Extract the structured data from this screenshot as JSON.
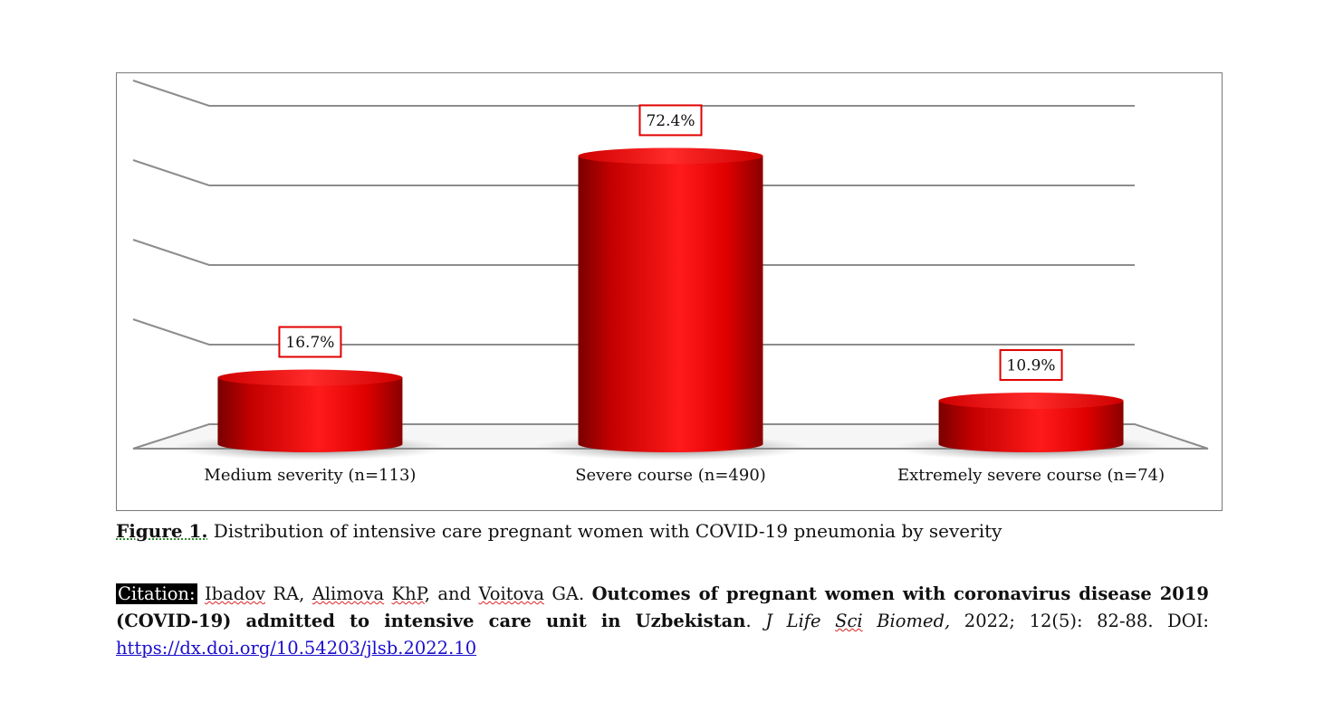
{
  "chart_data": {
    "type": "bar",
    "style": "3d-cylinder",
    "categories": [
      "Medium severity (n=113)",
      "Severe course (n=490)",
      "Extremely severe course (n=74)"
    ],
    "values": [
      16.7,
      72.4,
      10.9
    ],
    "data_labels": [
      "16.7%",
      "72.4%",
      "10.9%"
    ],
    "ylim": [
      0,
      80
    ],
    "grid": true,
    "legend": "none",
    "bar_color": "#e00000"
  },
  "caption": {
    "label": "Figure 1.",
    "text": " Distribution of intensive care pregnant women with COVID-19 pneumonia by severity"
  },
  "citation": {
    "label": "Citation:",
    "author1": "Ibadov",
    "author1_rest": " RA, ",
    "author2": "Alimova",
    "author2_mid": " ",
    "author2_init": "KhP",
    "and_text": ", and ",
    "author3": "Voitova",
    "author3_rest": " GA. ",
    "title": "Outcomes of pregnant women with coronavirus disease 2019 (COVID-19) admitted to intensive care unit in Uzbekistan",
    "title_end": ". ",
    "journal_a": "J Life ",
    "journal_b": "Sci",
    "journal_c": " Biomed,",
    "details": " 2022; 12(5): 82-88. DOI: ",
    "doi": "https://dx.doi.org/10.54203/jlsb.2022.10"
  }
}
